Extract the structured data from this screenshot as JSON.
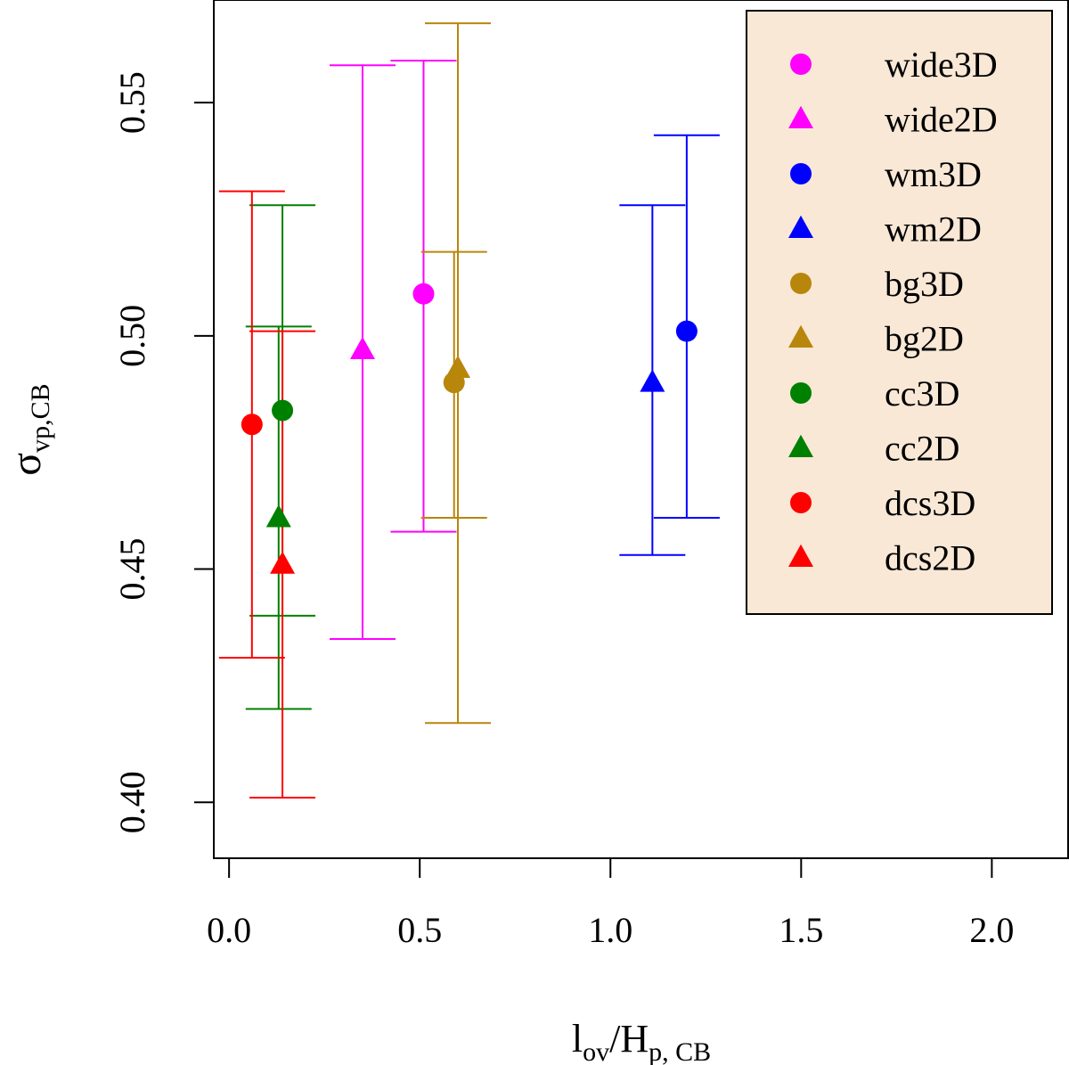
{
  "chart_data": {
    "type": "scatter",
    "title": "",
    "xlabel": {
      "main": "l",
      "main_sub": "ov",
      "sep": "/H",
      "sep_sub": "p, CB"
    },
    "ylabel": {
      "main": "σ",
      "sub": "vp,CB"
    },
    "xlim": [
      -0.04,
      2.2
    ],
    "ylim": [
      0.388,
      0.572
    ],
    "xticks": [
      0.0,
      0.5,
      1.0,
      1.5,
      2.0
    ],
    "xtick_labels": [
      "0.0",
      "0.5",
      "1.0",
      "1.5",
      "2.0"
    ],
    "yticks": [
      0.4,
      0.45,
      0.5,
      0.55
    ],
    "ytick_labels": [
      "0.40",
      "0.45",
      "0.50",
      "0.55"
    ],
    "grid": false,
    "legend_position": "top-right",
    "legend_background": "#f9e8d6",
    "series": [
      {
        "name": "wide3D",
        "marker": "circle",
        "color": "#ff00ff",
        "x": 0.51,
        "y": 0.509,
        "ylo": 0.458,
        "yhi": 0.559
      },
      {
        "name": "wide2D",
        "marker": "triangle",
        "color": "#ff00ff",
        "x": 0.35,
        "y": 0.497,
        "ylo": 0.435,
        "yhi": 0.558
      },
      {
        "name": "wm3D",
        "marker": "circle",
        "color": "#0000ff",
        "x": 1.2,
        "y": 0.501,
        "ylo": 0.461,
        "yhi": 0.543
      },
      {
        "name": "wm2D",
        "marker": "triangle",
        "color": "#0000ff",
        "x": 1.11,
        "y": 0.49,
        "ylo": 0.453,
        "yhi": 0.528
      },
      {
        "name": "bg3D",
        "marker": "circle",
        "color": "#b8860b",
        "x": 0.59,
        "y": 0.49,
        "ylo": 0.461,
        "yhi": 0.518
      },
      {
        "name": "bg2D",
        "marker": "triangle",
        "color": "#b8860b",
        "x": 0.6,
        "y": 0.493,
        "ylo": 0.417,
        "yhi": 0.567
      },
      {
        "name": "cc3D",
        "marker": "circle",
        "color": "#008000",
        "x": 0.14,
        "y": 0.484,
        "ylo": 0.44,
        "yhi": 0.528
      },
      {
        "name": "cc2D",
        "marker": "triangle",
        "color": "#008000",
        "x": 0.13,
        "y": 0.461,
        "ylo": 0.42,
        "yhi": 0.502
      },
      {
        "name": "dcs3D",
        "marker": "circle",
        "color": "#ff0000",
        "x": 0.06,
        "y": 0.481,
        "ylo": 0.431,
        "yhi": 0.531
      },
      {
        "name": "dcs2D",
        "marker": "triangle",
        "color": "#ff0000",
        "x": 0.14,
        "y": 0.451,
        "ylo": 0.401,
        "yhi": 0.501
      }
    ]
  }
}
